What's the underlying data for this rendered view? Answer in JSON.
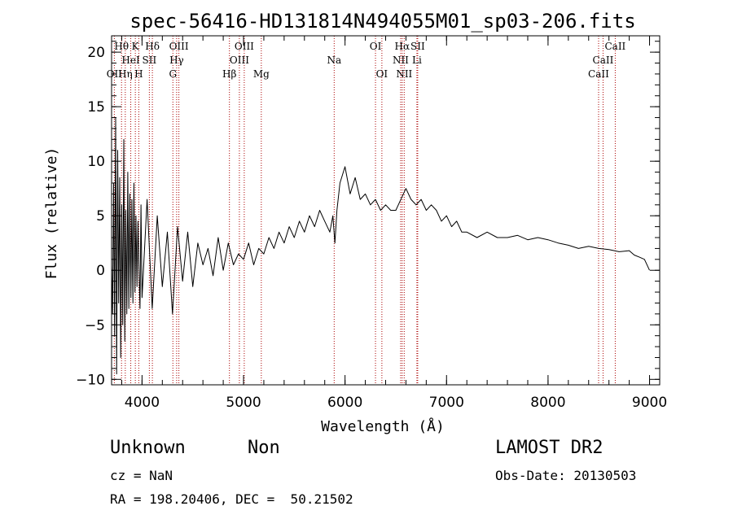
{
  "chart_data": {
    "type": "line",
    "title": "spec-56416-HD131814N494055M01_sp03-206.fits",
    "xlabel": "Wavelength (Å)",
    "ylabel": "Flux (relative)",
    "xlim": [
      3700,
      9100
    ],
    "ylim": [
      -10.5,
      21.5
    ],
    "x_ticks": [
      4000,
      5000,
      6000,
      7000,
      8000,
      9000
    ],
    "y_ticks": [
      -10,
      -5,
      0,
      5,
      10,
      15,
      20
    ],
    "x_minor_step": 200,
    "y_minor_step": 1,
    "grid": false,
    "series": [
      {
        "color": "#000000",
        "x": [
          3700,
          3710,
          3720,
          3730,
          3740,
          3750,
          3760,
          3770,
          3780,
          3790,
          3800,
          3810,
          3820,
          3830,
          3840,
          3850,
          3860,
          3870,
          3880,
          3890,
          3900,
          3910,
          3920,
          3930,
          3940,
          3950,
          3960,
          3970,
          3980,
          3990,
          4000,
          4050,
          4100,
          4150,
          4200,
          4250,
          4300,
          4350,
          4400,
          4450,
          4500,
          4550,
          4600,
          4650,
          4700,
          4750,
          4800,
          4850,
          4900,
          4950,
          5000,
          5050,
          5100,
          5150,
          5200,
          5250,
          5300,
          5350,
          5400,
          5450,
          5500,
          5550,
          5600,
          5650,
          5700,
          5750,
          5800,
          5850,
          5880,
          5900,
          5920,
          5950,
          6000,
          6050,
          6100,
          6150,
          6200,
          6250,
          6300,
          6350,
          6400,
          6450,
          6500,
          6550,
          6600,
          6650,
          6700,
          6750,
          6800,
          6850,
          6900,
          6950,
          7000,
          7050,
          7100,
          7150,
          7200,
          7300,
          7400,
          7500,
          7600,
          7700,
          7800,
          7900,
          8000,
          8100,
          8200,
          8300,
          8400,
          8500,
          8600,
          8700,
          8800,
          8850,
          8900,
          8950,
          9000
        ],
        "y": [
          0.5,
          -4.0,
          8.0,
          -6.0,
          14.0,
          -9.5,
          11.0,
          -3.0,
          8.5,
          -8.0,
          6.0,
          -5.0,
          12.0,
          -6.5,
          5.5,
          -4.0,
          9.0,
          -3.5,
          7.0,
          -2.5,
          6.5,
          -3.0,
          8.0,
          -2.0,
          5.0,
          -1.5,
          4.5,
          0.0,
          -3.5,
          6.0,
          -2.5,
          6.5,
          -3.5,
          5.0,
          -1.5,
          3.5,
          -4.0,
          4.0,
          -1.0,
          3.5,
          -1.5,
          2.5,
          0.5,
          2.0,
          -0.5,
          3.0,
          0.0,
          2.5,
          0.5,
          1.5,
          1.0,
          2.5,
          0.5,
          2.0,
          1.5,
          3.0,
          2.0,
          3.5,
          2.5,
          4.0,
          3.0,
          4.5,
          3.5,
          5.0,
          4.0,
          5.5,
          4.5,
          3.5,
          5.0,
          2.5,
          5.5,
          8.0,
          9.5,
          7.0,
          8.5,
          6.5,
          7.0,
          6.0,
          6.5,
          5.5,
          6.0,
          5.5,
          5.5,
          6.5,
          7.5,
          6.5,
          6.0,
          6.5,
          5.5,
          6.0,
          5.5,
          4.5,
          5.0,
          4.0,
          4.5,
          3.5,
          3.5,
          3.0,
          3.5,
          3.0,
          3.0,
          3.2,
          2.8,
          3.0,
          2.8,
          2.5,
          2.3,
          2.0,
          2.2,
          2.0,
          1.9,
          1.7,
          1.8,
          1.4,
          1.2,
          1.0,
          0.0
        ]
      }
    ],
    "spectral_lines": [
      {
        "label": "OII",
        "wavelength": 3727,
        "row": 3
      },
      {
        "label": "Hθ",
        "wavelength": 3798,
        "row": 1
      },
      {
        "label": "Hη",
        "wavelength": 3835,
        "row": 3
      },
      {
        "label": "HeI",
        "wavelength": 3889,
        "row": 2
      },
      {
        "label": "K",
        "wavelength": 3934,
        "row": 1
      },
      {
        "label": "SII",
        "wavelength": 4072,
        "row": 2
      },
      {
        "label": "H",
        "wavelength": 3968,
        "row": 3
      },
      {
        "label": "Hδ",
        "wavelength": 4102,
        "row": 1
      },
      {
        "label": "OIII",
        "wavelength": 4363,
        "row": 1
      },
      {
        "label": "Hγ",
        "wavelength": 4341,
        "row": 2
      },
      {
        "label": "G",
        "wavelength": 4304,
        "row": 3
      },
      {
        "label": "Hβ",
        "wavelength": 4861,
        "row": 3
      },
      {
        "label": "OIII",
        "wavelength": 5007,
        "row": 1
      },
      {
        "label": "OIII",
        "wavelength": 4959,
        "row": 2
      },
      {
        "label": "Mg",
        "wavelength": 5175,
        "row": 3
      },
      {
        "label": "Na",
        "wavelength": 5893,
        "row": 2
      },
      {
        "label": "OI",
        "wavelength": 6300,
        "row": 1
      },
      {
        "label": "OI",
        "wavelength": 6363,
        "row": 3
      },
      {
        "label": "NII",
        "wavelength": 6548,
        "row": 2
      },
      {
        "label": "NII",
        "wavelength": 6583,
        "row": 3
      },
      {
        "label": "Hα",
        "wavelength": 6563,
        "row": 1
      },
      {
        "label": "SII",
        "wavelength": 6716,
        "row": 1
      },
      {
        "label": "Li",
        "wavelength": 6708,
        "row": 2
      },
      {
        "label": "CaII",
        "wavelength": 8498,
        "row": 3
      },
      {
        "label": "CaII",
        "wavelength": 8542,
        "row": 2
      },
      {
        "label": "CaII",
        "wavelength": 8662,
        "row": 1
      }
    ],
    "line_marker_color": "#aa0000"
  },
  "info": {
    "classification": "Unknown",
    "subclass": "Non",
    "survey": "LAMOST DR2",
    "cz": "cz = NaN",
    "obs_date": "Obs-Date: 20130503",
    "coords": "RA = 198.20406, DEC =  50.21502"
  }
}
